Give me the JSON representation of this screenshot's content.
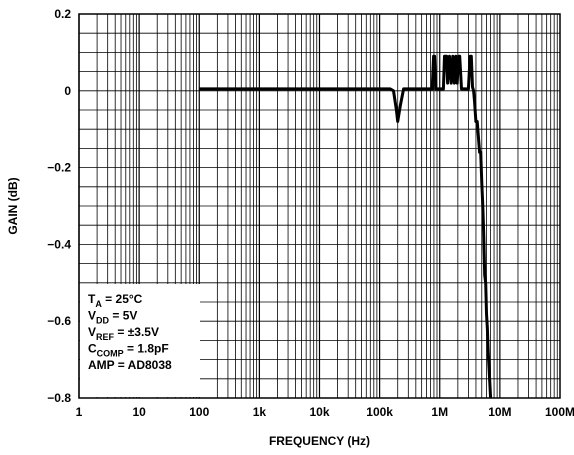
{
  "chart_data": {
    "type": "line",
    "title": "",
    "xlabel": "FREQUENCY (Hz)",
    "ylabel": "GAIN (dB)",
    "xscale": "log",
    "xlim": [
      1,
      100000000
    ],
    "ylim": [
      -0.8,
      0.2
    ],
    "grid": true,
    "x_tick_labels": [
      "1",
      "10",
      "100",
      "1k",
      "10k",
      "100k",
      "1M",
      "10M",
      "100M"
    ],
    "y_tick_labels": [
      "0.2",
      "0",
      "−0.2",
      "−0.4",
      "−0.6",
      "−0.8"
    ],
    "y_ticks": [
      0.2,
      0,
      -0.2,
      -0.4,
      -0.6,
      -0.8
    ],
    "conditions": [
      {
        "main": "T",
        "sub": "A",
        "rest": " = 25°C"
      },
      {
        "main": "V",
        "sub": "DD",
        "rest": " = 5V"
      },
      {
        "main": "V",
        "sub": "REF",
        "rest": " = ±3.5V"
      },
      {
        "main": "C",
        "sub": "COMP",
        "rest": " = 1.8pF"
      },
      {
        "main": "AMP = AD8038",
        "sub": "",
        "rest": ""
      }
    ],
    "series": [
      {
        "x": [
          100,
          150000,
          170000,
          190000,
          200000,
          220000,
          250000,
          280000,
          750000,
          790000,
          820000,
          860000,
          900000,
          1150000,
          1200000,
          1300000,
          1350000,
          1450000,
          1550000,
          1650000,
          1750000,
          1850000,
          1950000,
          2050000,
          2150000,
          2300000,
          2450000,
          2550000,
          3000000,
          3200000,
          3350000,
          3500000,
          3650000,
          3800000,
          4000000,
          4200000,
          4400000,
          4600000,
          4800000,
          5000000,
          5200000,
          5400000,
          5600000,
          5800000,
          6000000,
          6200000,
          6400000,
          6600000,
          6800000,
          7000000
        ],
        "y": [
          0.005,
          0.005,
          0.0,
          -0.05,
          -0.08,
          -0.04,
          0.005,
          0.005,
          0.005,
          0.09,
          0.09,
          0.005,
          0.005,
          0.005,
          0.09,
          0.09,
          0.02,
          0.09,
          0.02,
          0.09,
          0.02,
          0.09,
          0.02,
          0.09,
          0.09,
          0.005,
          0.005,
          0.005,
          0.005,
          0.09,
          0.09,
          0.01,
          0.0,
          -0.03,
          -0.08,
          -0.08,
          -0.12,
          -0.16,
          -0.16,
          -0.24,
          -0.3,
          -0.38,
          -0.48,
          -0.5,
          -0.58,
          -0.62,
          -0.68,
          -0.72,
          -0.76,
          -0.8
        ]
      }
    ]
  }
}
